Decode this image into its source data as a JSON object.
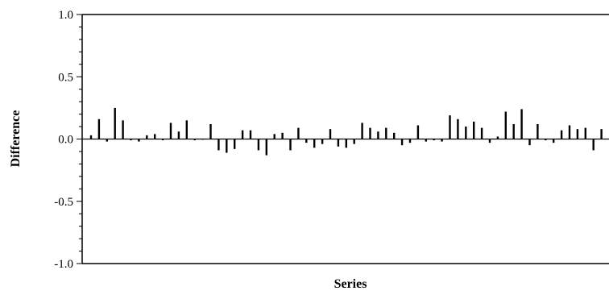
{
  "chart_data": {
    "type": "bar",
    "xlabel": "Series",
    "ylabel": "Difference",
    "ylim": [
      -1.0,
      1.0
    ],
    "yticks": [
      1.0,
      0.5,
      0.0,
      -0.5,
      -1.0
    ],
    "ytick_labels": [
      "1.0",
      "0.5",
      "0.0",
      "-0.5",
      "-1.0"
    ],
    "grid": false,
    "legend": "none",
    "bar_color": "#000000",
    "values": [
      0.03,
      0.16,
      -0.02,
      0.25,
      0.15,
      -0.01,
      -0.02,
      0.03,
      0.04,
      -0.01,
      0.13,
      0.06,
      0.15,
      -0.01,
      0.0,
      0.12,
      -0.09,
      -0.11,
      -0.08,
      0.07,
      0.07,
      -0.09,
      -0.13,
      0.04,
      0.05,
      -0.09,
      0.09,
      -0.03,
      -0.07,
      -0.04,
      0.08,
      -0.06,
      -0.07,
      -0.04,
      0.13,
      0.09,
      0.06,
      0.09,
      0.05,
      -0.05,
      -0.03,
      0.11,
      -0.02,
      -0.01,
      -0.02,
      0.19,
      0.16,
      0.1,
      0.14,
      0.09,
      -0.03,
      0.02,
      0.22,
      0.12,
      0.24,
      -0.05,
      0.12,
      -0.01,
      -0.03,
      0.07,
      0.11,
      0.08,
      0.09,
      -0.09,
      0.08
    ]
  }
}
